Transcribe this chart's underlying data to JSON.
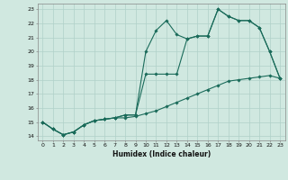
{
  "title": "",
  "xlabel": "Humidex (Indice chaleur)",
  "xlim": [
    -0.5,
    23.5
  ],
  "ylim": [
    13.7,
    23.4
  ],
  "yticks": [
    14,
    15,
    16,
    17,
    18,
    19,
    20,
    21,
    22,
    23
  ],
  "xticks": [
    0,
    1,
    2,
    3,
    4,
    5,
    6,
    7,
    8,
    9,
    10,
    11,
    12,
    13,
    14,
    15,
    16,
    17,
    18,
    19,
    20,
    21,
    22,
    23
  ],
  "background_color": "#d0e8e0",
  "grid_color": "#b0d0c8",
  "line_color": "#1a6b5a",
  "line1_x": [
    0,
    1,
    2,
    3,
    4,
    5,
    6,
    7,
    8,
    9,
    10,
    11,
    12,
    13,
    14,
    15,
    16,
    17,
    18,
    19,
    20,
    21,
    22,
    23
  ],
  "line1_y": [
    15.0,
    14.5,
    14.1,
    14.3,
    14.8,
    15.1,
    15.2,
    15.3,
    15.3,
    15.4,
    15.6,
    15.8,
    16.1,
    16.4,
    16.7,
    17.0,
    17.3,
    17.6,
    17.9,
    18.0,
    18.1,
    18.2,
    18.3,
    18.1
  ],
  "line2_x": [
    0,
    1,
    2,
    3,
    4,
    5,
    6,
    7,
    8,
    9,
    10,
    11,
    12,
    13,
    14,
    15,
    16,
    17,
    18,
    19,
    20,
    21,
    22,
    23
  ],
  "line2_y": [
    15.0,
    14.5,
    14.1,
    14.3,
    14.8,
    15.1,
    15.2,
    15.3,
    15.5,
    15.5,
    18.4,
    18.4,
    18.4,
    18.4,
    20.9,
    21.1,
    21.1,
    23.0,
    22.5,
    22.2,
    22.2,
    21.7,
    20.0,
    18.1
  ],
  "line3_x": [
    0,
    1,
    2,
    3,
    4,
    5,
    6,
    7,
    8,
    9,
    10,
    11,
    12,
    13,
    14,
    15,
    16,
    17,
    18,
    19,
    20,
    21,
    22,
    23
  ],
  "line3_y": [
    15.0,
    14.5,
    14.1,
    14.3,
    14.8,
    15.1,
    15.2,
    15.3,
    15.5,
    15.5,
    20.0,
    21.5,
    22.2,
    21.2,
    20.9,
    21.1,
    21.1,
    23.0,
    22.5,
    22.2,
    22.2,
    21.7,
    20.0,
    18.1
  ]
}
